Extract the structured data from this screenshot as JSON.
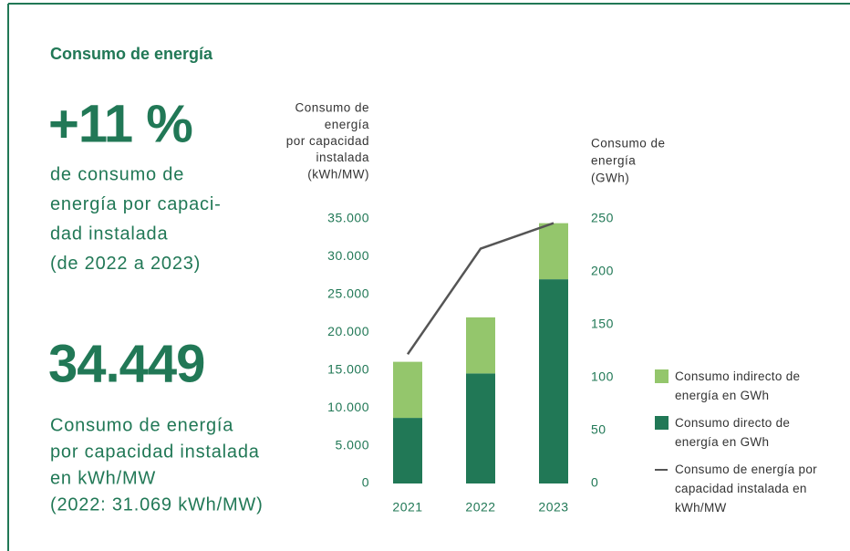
{
  "header": {
    "title": "Consumo de energía"
  },
  "stats": [
    {
      "value": "+11 %",
      "description": [
        "de consumo de",
        "energía por capaci-",
        "dad instalada",
        "(de 2022 a 2023)"
      ]
    },
    {
      "value": "34.449",
      "description": [
        "Consumo de energía",
        "por capacidad instalada",
        "en kWh/MW",
        "(2022: 31.069 kWh/MW)"
      ]
    }
  ],
  "chart_data": {
    "type": "bar",
    "stacked": true,
    "categories": [
      "2021",
      "2022",
      "2023"
    ],
    "ylabel": [
      "Consumo de",
      "energía",
      "por capacidad",
      "instalada",
      "(kWh/MW)"
    ],
    "y2label": [
      "Consumo de",
      "energía",
      "(GWh)"
    ],
    "ylim": [
      0,
      35000
    ],
    "yticks": [
      0,
      {
        "value": 5000,
        "label": "5.000"
      },
      {
        "value": 10000,
        "label": "10.000"
      },
      {
        "value": 15000,
        "label": "15.000"
      },
      {
        "value": 20000,
        "label": "20.000"
      },
      {
        "value": 25000,
        "label": "25.000"
      },
      {
        "value": 30000,
        "label": "30.000"
      },
      {
        "value": 35000,
        "label": "35.000"
      }
    ],
    "y2lim": [
      0,
      250
    ],
    "y2ticks": [
      0,
      50,
      100,
      150,
      200,
      250
    ],
    "series": [
      {
        "name": "Consumo directo de energía en GWh",
        "type": "bar",
        "axis": "y2",
        "color": "#217856",
        "values": [
          62,
          104,
          193
        ]
      },
      {
        "name": "Consumo indirecto de energía en GWh",
        "type": "bar",
        "axis": "y2",
        "color": "#94c66c",
        "values": [
          53,
          53,
          53
        ]
      },
      {
        "name": "Consumo de energía por capacidad instalada en kWh/MW",
        "type": "line",
        "color": "#555555",
        "values": [
          17100,
          31069,
          34449
        ]
      }
    ],
    "legend_order": [
      1,
      0,
      2
    ]
  }
}
